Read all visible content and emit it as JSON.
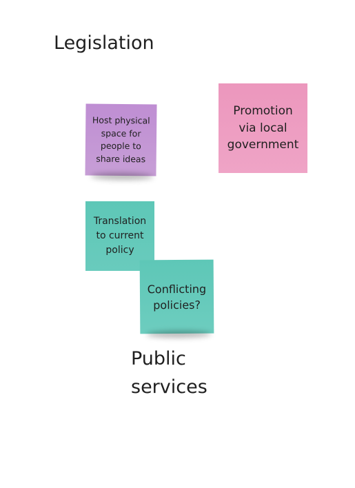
{
  "board": {
    "headings": {
      "legislation": "Legislation",
      "public_services": "Public services"
    },
    "notes": {
      "host": {
        "text": "Host physical space for people to share ideas",
        "color": "#c394d5"
      },
      "promotion": {
        "text": "Promotion via local government",
        "color": "#ee9dc2"
      },
      "translation": {
        "text": "Translation to current policy",
        "color": "#63c9ba"
      },
      "conflicting": {
        "text": "Conflicting policies?",
        "color": "#63c9ba"
      }
    }
  }
}
